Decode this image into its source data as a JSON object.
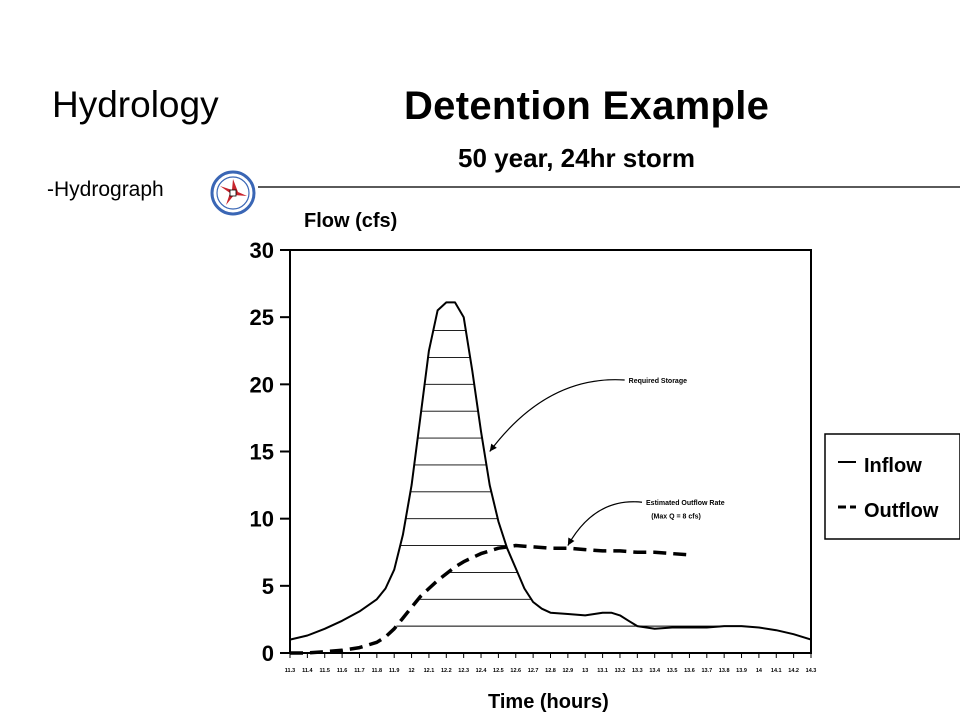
{
  "slide": {
    "title": "Hydrology",
    "subtitle": "-Hydrograph"
  },
  "chart_data": {
    "type": "line",
    "title": "Detention Example",
    "subtitle": "50 year, 24hr storm",
    "ylabel": "Flow (cfs)",
    "xlabel": "Time (hours)",
    "xlim": [
      11.3,
      14.3
    ],
    "ylim": [
      0,
      30
    ],
    "y_ticks": [
      0,
      5,
      10,
      15,
      20,
      25,
      30
    ],
    "x_ticks": [
      11.3,
      11.4,
      11.5,
      11.6,
      11.7,
      11.8,
      11.9,
      12,
      12.1,
      12.2,
      12.3,
      12.4,
      12.5,
      12.6,
      12.7,
      12.8,
      12.9,
      13,
      13.1,
      13.2,
      13.3,
      13.4,
      13.5,
      13.6,
      13.7,
      13.8,
      13.9,
      14,
      14.1,
      14.2,
      14.3
    ],
    "x_tick_labels": [
      "11.3",
      "11.4",
      "11.5",
      "11.6",
      "11.7",
      "11.8",
      "11.9",
      "12",
      "12.1",
      "12.2",
      "12.3",
      "12.4",
      "12.5",
      "12.6",
      "12.7",
      "12.8",
      "12.9",
      "13",
      "13.1",
      "13.2",
      "13.3",
      "13.4",
      "13.5",
      "13.6",
      "13.7",
      "13.8",
      "13.9",
      "14",
      "14.1",
      "14.2",
      "14.3"
    ],
    "grid": false,
    "legend_position": "right",
    "series": [
      {
        "name": "Inflow",
        "style": "solid",
        "x": [
          11.3,
          11.4,
          11.5,
          11.6,
          11.7,
          11.8,
          11.85,
          11.9,
          11.95,
          12.0,
          12.05,
          12.1,
          12.15,
          12.2,
          12.25,
          12.3,
          12.35,
          12.4,
          12.45,
          12.5,
          12.55,
          12.6,
          12.65,
          12.7,
          12.75,
          12.8,
          12.9,
          13.0,
          13.1,
          13.15,
          13.2,
          13.25,
          13.3,
          13.4,
          13.5,
          13.6,
          13.7,
          13.8,
          13.9,
          14.0,
          14.1,
          14.2,
          14.3
        ],
        "y": [
          1.0,
          1.3,
          1.8,
          2.4,
          3.1,
          4.0,
          4.8,
          6.2,
          8.8,
          12.5,
          17.5,
          22.5,
          25.5,
          26.1,
          26.1,
          25.0,
          21.0,
          16.5,
          12.5,
          9.8,
          7.8,
          6.3,
          4.8,
          3.8,
          3.3,
          3.0,
          2.9,
          2.8,
          3.0,
          3.0,
          2.8,
          2.4,
          2.0,
          1.8,
          1.9,
          1.9,
          1.9,
          2.0,
          2.0,
          1.9,
          1.7,
          1.4,
          1.0
        ]
      },
      {
        "name": "Outflow",
        "style": "dashed",
        "x": [
          11.3,
          11.4,
          11.5,
          11.6,
          11.7,
          11.8,
          11.85,
          11.9,
          11.95,
          12.0,
          12.05,
          12.1,
          12.15,
          12.2,
          12.25,
          12.3,
          12.35,
          12.4,
          12.45,
          12.5,
          12.55,
          12.6,
          12.65,
          12.7,
          12.8,
          12.9,
          13.0,
          13.1,
          13.2,
          13.3,
          13.4,
          13.5,
          13.6
        ],
        "y": [
          0.0,
          0.0,
          0.1,
          0.2,
          0.4,
          0.8,
          1.2,
          1.8,
          2.6,
          3.4,
          4.2,
          4.8,
          5.4,
          5.9,
          6.4,
          6.8,
          7.1,
          7.4,
          7.6,
          7.8,
          7.9,
          8.0,
          7.95,
          7.9,
          7.8,
          7.8,
          7.7,
          7.6,
          7.6,
          7.5,
          7.5,
          7.4,
          7.3
        ]
      }
    ],
    "storage_hatch_y": [
      2,
      4,
      6,
      8,
      10,
      12,
      14,
      16,
      18,
      20,
      22,
      24
    ],
    "annotations": [
      {
        "text": "Required Storage",
        "x": 13.25,
        "y": 20.1,
        "arrow_to_x": 12.45,
        "arrow_to_y": 15.0
      },
      {
        "text": "Estimated Outflow Rate",
        "x": 13.35,
        "y": 11.0,
        "arrow_to_x": 12.9,
        "arrow_to_y": 8.0
      },
      {
        "text": "(Max Q = 8 cfs)",
        "x": 13.38,
        "y": 10.0
      }
    ]
  }
}
